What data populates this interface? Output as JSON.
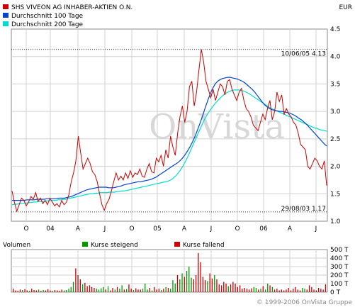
{
  "chart_data": [
    {
      "type": "line",
      "currency": "EUR",
      "ylim": [
        1.0,
        4.5
      ],
      "yticks": [
        "4.5",
        "4.0",
        "3.5",
        "3.0",
        "2.5",
        "2.0",
        "1.5",
        "1.0"
      ],
      "xticks": [
        "O",
        "04",
        "A",
        "J",
        "O",
        "05",
        "A",
        "J",
        "O",
        "06",
        "A",
        "J"
      ],
      "grid": true,
      "legend_position": "top-left",
      "annotations": {
        "max": {
          "date": "10/06/05",
          "value": 4.13,
          "text": "10/06/05 4.13"
        },
        "min": {
          "date": "29/08/03",
          "value": 1.17,
          "text": "29/08/03 1.17"
        }
      },
      "series": [
        {
          "name": "SHS VIVEON AG INHABER-AKTIEN O.N.",
          "color": "#cc0000",
          "values": [
            1.55,
            1.35,
            1.18,
            1.3,
            1.42,
            1.38,
            1.28,
            1.35,
            1.45,
            1.4,
            1.52,
            1.36,
            1.42,
            1.32,
            1.38,
            1.3,
            1.42,
            1.35,
            1.28,
            1.32,
            1.26,
            1.38,
            1.3,
            1.35,
            1.48,
            1.72,
            1.88,
            2.1,
            2.55,
            2.25,
            1.95,
            2.05,
            2.15,
            2.05,
            1.9,
            1.85,
            1.72,
            1.5,
            1.3,
            1.2,
            1.32,
            1.4,
            1.55,
            1.72,
            1.88,
            1.75,
            1.82,
            1.75,
            1.88,
            1.78,
            1.92,
            1.8,
            1.88,
            1.85,
            1.95,
            1.82,
            1.8,
            1.95,
            2.05,
            1.9,
            1.88,
            2.15,
            2.08,
            2.2,
            2.0,
            2.3,
            2.15,
            2.55,
            2.35,
            2.2,
            2.6,
            2.9,
            3.1,
            2.8,
            3.0,
            3.45,
            3.55,
            3.1,
            3.35,
            3.75,
            4.13,
            3.9,
            3.55,
            3.4,
            3.25,
            3.4,
            3.2,
            3.35,
            3.5,
            3.45,
            3.3,
            3.55,
            3.58,
            3.4,
            3.3,
            3.2,
            3.35,
            3.42,
            3.2,
            3.05,
            3.0,
            2.9,
            2.75,
            2.7,
            2.65,
            2.8,
            2.95,
            2.85,
            3.05,
            3.2,
            2.85,
            3.0,
            3.35,
            3.18,
            3.3,
            2.95,
            3.05,
            2.95,
            2.9,
            2.8,
            2.75,
            2.6,
            2.4,
            2.35,
            2.3,
            2.0,
            1.95,
            2.05,
            2.15,
            2.1,
            2.0,
            1.95,
            2.1,
            1.65
          ]
        },
        {
          "name": "Durchschnitt 100 Tage",
          "color": "#0044cc",
          "values": [
            1.38,
            1.38,
            1.38,
            1.38,
            1.38,
            1.38,
            1.39,
            1.39,
            1.39,
            1.39,
            1.4,
            1.4,
            1.4,
            1.4,
            1.41,
            1.41,
            1.41,
            1.41,
            1.41,
            1.42,
            1.42,
            1.42,
            1.43,
            1.44,
            1.45,
            1.47,
            1.49,
            1.51,
            1.53,
            1.55,
            1.57,
            1.58,
            1.59,
            1.6,
            1.61,
            1.62,
            1.62,
            1.62,
            1.62,
            1.61,
            1.61,
            1.61,
            1.62,
            1.63,
            1.64,
            1.66,
            1.67,
            1.68,
            1.69,
            1.7,
            1.71,
            1.72,
            1.72,
            1.73,
            1.74,
            1.75,
            1.76,
            1.78,
            1.8,
            1.83,
            1.86,
            1.89,
            1.92,
            1.95,
            1.98,
            2.01,
            2.04,
            2.07,
            2.11,
            2.16,
            2.22,
            2.29,
            2.37,
            2.46,
            2.56,
            2.68,
            2.8,
            2.93,
            3.07,
            3.2,
            3.32,
            3.42,
            3.5,
            3.55,
            3.58,
            3.6,
            3.61,
            3.62,
            3.62,
            3.61,
            3.6,
            3.59,
            3.57,
            3.55,
            3.52,
            3.48,
            3.44,
            3.4,
            3.35,
            3.29,
            3.23,
            3.17,
            3.12,
            3.08,
            3.05,
            3.03,
            3.02,
            3.01,
            3.0,
            3.0,
            2.99,
            2.98,
            2.97,
            2.95,
            2.93,
            2.9,
            2.87,
            2.84,
            2.8,
            2.76,
            2.71,
            2.66,
            2.61,
            2.56,
            2.51,
            2.46,
            2.41,
            2.37
          ]
        },
        {
          "name": "Durchschnitt 200 Tage",
          "color": "#00ddcc",
          "values": [
            1.3,
            1.31,
            1.31,
            1.32,
            1.32,
            1.33,
            1.33,
            1.34,
            1.34,
            1.35,
            1.35,
            1.36,
            1.36,
            1.36,
            1.37,
            1.37,
            1.38,
            1.38,
            1.38,
            1.39,
            1.39,
            1.4,
            1.4,
            1.41,
            1.42,
            1.43,
            1.44,
            1.45,
            1.46,
            1.47,
            1.48,
            1.49,
            1.5,
            1.5,
            1.51,
            1.51,
            1.52,
            1.52,
            1.52,
            1.52,
            1.53,
            1.53,
            1.53,
            1.54,
            1.54,
            1.55,
            1.55,
            1.56,
            1.57,
            1.58,
            1.59,
            1.6,
            1.61,
            1.62,
            1.63,
            1.64,
            1.65,
            1.66,
            1.67,
            1.68,
            1.69,
            1.7,
            1.71,
            1.72,
            1.73,
            1.75,
            1.78,
            1.82,
            1.87,
            1.93,
            2.0,
            2.08,
            2.17,
            2.27,
            2.37,
            2.47,
            2.57,
            2.67,
            2.77,
            2.86,
            2.94,
            3.01,
            3.07,
            3.13,
            3.18,
            3.23,
            3.27,
            3.31,
            3.34,
            3.36,
            3.38,
            3.39,
            3.39,
            3.39,
            3.38,
            3.37,
            3.35,
            3.33,
            3.3,
            3.27,
            3.24,
            3.21,
            3.18,
            3.15,
            3.12,
            3.09,
            3.06,
            3.04,
            3.02,
            3.0,
            2.98,
            2.96,
            2.94,
            2.92,
            2.9,
            2.88,
            2.86,
            2.84,
            2.82,
            2.8,
            2.78,
            2.76,
            2.74,
            2.72,
            2.7,
            2.69,
            2.67,
            2.66,
            2.65,
            2.64
          ]
        }
      ]
    },
    {
      "type": "bar",
      "title": "Volumen",
      "ylim": [
        0,
        500
      ],
      "yticks": [
        "500 T",
        "400 T",
        "300 T",
        "200 T",
        "100 T",
        "0 T"
      ],
      "legend": [
        {
          "label": "Kurse steigend",
          "color": "#009900"
        },
        {
          "label": "Kurse fallend",
          "color": "#cc0000"
        }
      ],
      "values": [
        40,
        20,
        15,
        30,
        25,
        35,
        20,
        15,
        40,
        25,
        20,
        30,
        15,
        25,
        20,
        35,
        20,
        15,
        25,
        20,
        15,
        30,
        20,
        25,
        40,
        60,
        120,
        280,
        200,
        150,
        90,
        110,
        70,
        80,
        60,
        50,
        40,
        30,
        45,
        60,
        30,
        70,
        20,
        50,
        30,
        60,
        40,
        80,
        30,
        35,
        90,
        40,
        25,
        45,
        30,
        30,
        40,
        100,
        30,
        50,
        20,
        60,
        30,
        40,
        25,
        40,
        60,
        50,
        40,
        140,
        100,
        200,
        150,
        220,
        180,
        250,
        300,
        170,
        150,
        200,
        460,
        350,
        180,
        140,
        130,
        220,
        160,
        200,
        150,
        90,
        80,
        120,
        100,
        70,
        90,
        120,
        100,
        60,
        80,
        40,
        50,
        40,
        30,
        45,
        60,
        50,
        30,
        40,
        70,
        30,
        100,
        80,
        60,
        30,
        40,
        20,
        30,
        20,
        30,
        50,
        20,
        40,
        60,
        30,
        20,
        50,
        40,
        30,
        80,
        60,
        30,
        20,
        50,
        40,
        30,
        90
      ],
      "direction": "rrrrgrrgrrrgrgrrrgrrrrgggggrrrgrrrrrggggrgrrgrggrgrrgrrrgggrgrrrgrgrgggrggrgggrrrrrrgrrgrrrrrgrrrrrrrrrrggrgrggrgrrrrrrrrrrrrggrrrrrr"
    }
  ],
  "copyright": "© 1999-2006 OnVista Gruppe"
}
